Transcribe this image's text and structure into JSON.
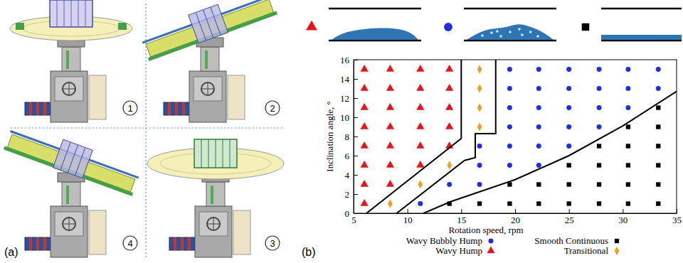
{
  "panels": {
    "labels": [
      "(a)",
      "(b)"
    ],
    "views": [
      "1",
      "2",
      "4",
      "3"
    ]
  },
  "chart_data": {
    "type": "scatter",
    "x_label": "Rotation speed, rpm",
    "y_label": "Inclination angle, °",
    "xlim": [
      5,
      35
    ],
    "xticks": [
      5,
      10,
      15,
      20,
      25,
      30,
      35
    ],
    "ylim": [
      0,
      16
    ],
    "yticks": [
      0,
      2,
      4,
      6,
      8,
      10,
      12,
      14,
      16
    ],
    "grid": false,
    "legend": "bottom",
    "series": [
      {
        "name": "Wavy Bubbly Hump",
        "color": "#1f2fe0",
        "marker": "circle",
        "x": [
          11.2,
          13.9,
          16.7,
          16.7,
          19.5,
          22.2,
          16.7,
          19.5,
          22.2,
          25,
          19.5,
          22.2,
          25,
          27.8,
          19.5,
          22.2,
          25,
          27.8,
          30.5,
          19.5,
          22.2,
          25,
          27.8,
          30.5,
          33.3,
          19.5,
          22.2,
          25,
          27.8,
          30.5,
          33.3
        ],
        "values": [
          1,
          3,
          3,
          5,
          5,
          5,
          7,
          7,
          7,
          7,
          9,
          9,
          9,
          9,
          11,
          11,
          11,
          11,
          11,
          13,
          13,
          13,
          13,
          13,
          13,
          15,
          15,
          15,
          15,
          15,
          15
        ]
      },
      {
        "name": "Smooth Continuous",
        "color": "#000000",
        "marker": "square",
        "x": [
          13.9,
          16.7,
          19.5,
          22.2,
          25,
          27.8,
          30.5,
          33.3,
          19.5,
          22.2,
          25,
          27.8,
          30.5,
          33.3,
          25,
          27.8,
          30.5,
          33.3,
          27.8,
          30.5,
          33.3,
          30.5,
          33.3,
          33.3
        ],
        "values": [
          1,
          1,
          1,
          1,
          1,
          1,
          1,
          1,
          3,
          3,
          3,
          3,
          3,
          3,
          5,
          5,
          5,
          5,
          7,
          7,
          7,
          9,
          9,
          11
        ]
      },
      {
        "name": "Wavy Hump",
        "color": "#e3161d",
        "marker": "triangle",
        "x": [
          6,
          6,
          8.4,
          6,
          8.4,
          11.2,
          6,
          8.4,
          11.2,
          13.9,
          6,
          8.4,
          11.2,
          13.9,
          6,
          8.4,
          11.2,
          13.9,
          6,
          8.4,
          11.2,
          13.9,
          6,
          8.4,
          11.2,
          13.9
        ],
        "values": [
          1,
          3,
          3,
          5,
          5,
          5,
          7,
          7,
          7,
          7,
          9,
          9,
          9,
          9,
          11,
          11,
          11,
          11,
          13,
          13,
          13,
          13,
          15,
          15,
          15,
          15
        ]
      },
      {
        "name": "Transitional",
        "color": "#f0a020",
        "marker": "diamond",
        "x": [
          8.4,
          11.2,
          13.9,
          16.7,
          16.7,
          16.7,
          16.7
        ],
        "values": [
          1,
          3,
          5,
          9,
          11,
          13,
          15
        ]
      },
      {
        "type": "line",
        "color": "#000000",
        "line_style": "solid",
        "x": [
          6.2,
          15.0,
          15.0
        ],
        "values": [
          0,
          7.8,
          16
        ]
      },
      {
        "type": "line",
        "color": "#000000",
        "line_style": "solid",
        "x": [
          9.0,
          15.3,
          16.3,
          16.3,
          18.2,
          18.2
        ],
        "values": [
          0,
          5.5,
          5.8,
          8.3,
          8.3,
          16
        ]
      },
      {
        "type": "line",
        "color": "#000000",
        "line_style": "solid",
        "x": [
          11.5,
          14,
          20,
          25,
          30,
          35
        ],
        "values": [
          0,
          1.2,
          3.5,
          6,
          9.1,
          12.7
        ]
      }
    ]
  }
}
